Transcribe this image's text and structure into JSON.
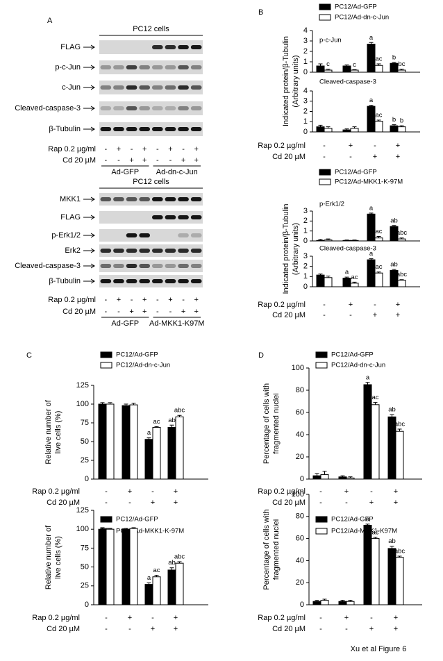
{
  "panel_labels": [
    "A",
    "B",
    "C",
    "D"
  ],
  "caption": "Xu et al Figure 6",
  "blots": [
    {
      "title": "PC12 cells",
      "rows": [
        "FLAG",
        "p-c-Jun",
        "c-Jun",
        "Cleaved-caspase-3",
        "β-Tubulin"
      ],
      "rap_label": "Rap 0.2 µg/ml",
      "cd_label": "Cd 20 µM",
      "rap": [
        "-",
        "+",
        "-",
        "+",
        "-",
        "+",
        "-",
        "+"
      ],
      "cd": [
        "-",
        "-",
        "+",
        "+",
        "-",
        "-",
        "+",
        "+"
      ],
      "groups": [
        "Ad-GFP",
        "Ad-dn-c-Jun"
      ]
    },
    {
      "title": "PC12 cells",
      "rows": [
        "MKK1",
        "FLAG",
        "p-Erk1/2",
        "Erk2",
        "Cleaved-caspase-3",
        "β-Tubulin"
      ],
      "rap_label": "Rap 0.2 µg/ml",
      "cd_label": "Cd 20 µM",
      "rap": [
        "-",
        "+",
        "-",
        "+",
        "-",
        "+",
        "-",
        "+"
      ],
      "cd": [
        "-",
        "-",
        "+",
        "+",
        "-",
        "-",
        "+",
        "+"
      ],
      "groups": [
        "Ad-GFP",
        "Ad-MKK1-K97M"
      ]
    }
  ],
  "chart_data": [
    {
      "type": "bar",
      "ylabel": [
        "Indicated protein/β-Tubulin",
        "(Arbitrary units)"
      ],
      "legend": [
        {
          "name": "PC12/Ad-GFP",
          "color": "#000000"
        },
        {
          "name": "PC12/Ad-dn-c-Jun",
          "color": "#ffffff"
        }
      ],
      "rap_label": "Rap 0.2 µg/ml",
      "cd_label": "Cd 20 µM",
      "rap": [
        "-",
        "+",
        "-",
        "+"
      ],
      "cd": [
        "-",
        "-",
        "+",
        "+"
      ],
      "panels": [
        {
          "title": "p-c-Jun",
          "ylim": [
            0,
            4
          ],
          "yticks": [
            0,
            1,
            2,
            3,
            4
          ],
          "series": [
            {
              "values": [
                0.6,
                0.6,
                2.7,
                0.85
              ],
              "errors": [
                0.2,
                0.1,
                0.15,
                0.1
              ],
              "labels": [
                null,
                null,
                "a",
                "b"
              ]
            },
            {
              "values": [
                0.2,
                0.2,
                0.65,
                0.2
              ],
              "errors": [
                0.1,
                0.05,
                0.15,
                0.1
              ],
              "labels": [
                "c",
                "c",
                "ac",
                "bc"
              ]
            }
          ]
        },
        {
          "title": "Cleaved-caspase-3",
          "ylim": [
            0,
            4
          ],
          "yticks": [
            0,
            1,
            2,
            3,
            4
          ],
          "series": [
            {
              "values": [
                0.5,
                0.2,
                2.5,
                0.6
              ],
              "errors": [
                0.15,
                0.1,
                0.1,
                0.1
              ],
              "labels": [
                null,
                null,
                "a",
                "b"
              ]
            },
            {
              "values": [
                0.35,
                0.35,
                1.05,
                0.5
              ],
              "errors": [
                0.15,
                0.15,
                0.1,
                0.1
              ],
              "labels": [
                null,
                null,
                "ac",
                "b"
              ]
            }
          ]
        }
      ]
    },
    {
      "type": "bar",
      "ylabel": [
        "Indicated protein/β-Tubulin",
        "(Arbitrary units)"
      ],
      "legend": [
        {
          "name": "PC12/Ad-GFP",
          "color": "#000000"
        },
        {
          "name": "PC12/Ad-MKK1-K-97M",
          "color": "#ffffff"
        }
      ],
      "rap_label": "Rap 0.2 µg/ml",
      "cd_label": "Cd 20 µM",
      "rap": [
        "-",
        "+",
        "-",
        "+"
      ],
      "cd": [
        "-",
        "-",
        "+",
        "+"
      ],
      "panels": [
        {
          "title": "p-Erk1/2",
          "ylim": [
            0,
            3
          ],
          "yticks": [
            0,
            1,
            2,
            3
          ],
          "series": [
            {
              "values": [
                0.05,
                0.05,
                2.7,
                1.45
              ],
              "errors": [
                0.1,
                0.05,
                0.1,
                0.1
              ],
              "labels": [
                null,
                null,
                "a",
                "ab"
              ]
            },
            {
              "values": [
                0.1,
                0.05,
                0.3,
                0.2
              ],
              "errors": [
                0.1,
                0.05,
                0.15,
                0.1
              ],
              "labels": [
                null,
                null,
                "ac",
                "abc"
              ]
            }
          ]
        },
        {
          "title": "Cleaved-caspase-3",
          "ylim": [
            0,
            3
          ],
          "yticks": [
            0,
            1,
            2,
            3
          ],
          "series": [
            {
              "values": [
                1.15,
                0.85,
                2.65,
                1.6
              ],
              "errors": [
                0.1,
                0.1,
                0.1,
                0.1
              ],
              "labels": [
                null,
                "a",
                "a",
                "ab"
              ]
            },
            {
              "values": [
                0.9,
                0.35,
                1.35,
                0.65
              ],
              "errors": [
                0.15,
                0.1,
                0.1,
                0.05
              ],
              "labels": [
                null,
                "ac",
                "ac",
                "abc"
              ]
            }
          ]
        }
      ]
    },
    {
      "type": "bar",
      "ylabel": [
        "Relative number of",
        "live cells (%)"
      ],
      "legend": [
        {
          "name": "PC12/Ad-GFP",
          "color": "#000000"
        },
        {
          "name": "PC12/Ad-dn-c-Jun",
          "color": "#ffffff"
        }
      ],
      "rap_label": "Rap 0.2 µg/ml",
      "cd_label": "Cd 20 µM",
      "rap": [
        "-",
        "+",
        "-",
        "+"
      ],
      "cd": [
        "-",
        "-",
        "+",
        "+"
      ],
      "panels": [
        {
          "ylim": [
            0,
            125
          ],
          "yticks": [
            0,
            25,
            50,
            75,
            100,
            125
          ],
          "series": [
            {
              "values": [
                100,
                98,
                53,
                69
              ],
              "errors": [
                2,
                2,
                2,
                3
              ],
              "labels": [
                null,
                null,
                "a",
                "ab"
              ]
            },
            {
              "values": [
                100,
                99,
                69,
                83
              ],
              "errors": [
                2,
                2,
                1,
                2
              ],
              "labels": [
                null,
                null,
                "ac",
                "abc"
              ]
            }
          ]
        }
      ]
    },
    {
      "type": "bar",
      "ylabel": [
        "Relative number of",
        "live cells (%)"
      ],
      "legend": [
        {
          "name": "PC12/Ad-GFP",
          "color": "#000000"
        },
        {
          "name": "PC12/Ad-MKK1-K-97M",
          "color": "#ffffff"
        }
      ],
      "rap_label": "Rap 0.2 µg/ml",
      "cd_label": "Cd 20 µM",
      "rap": [
        "-",
        "+",
        "-",
        "+"
      ],
      "cd": [
        "-",
        "-",
        "+",
        "+"
      ],
      "panels": [
        {
          "ylim": [
            0,
            125
          ],
          "yticks": [
            0,
            25,
            50,
            75,
            100,
            125
          ],
          "series": [
            {
              "values": [
                100,
                100,
                27,
                46
              ],
              "errors": [
                2,
                1,
                2,
                3
              ],
              "labels": [
                null,
                null,
                "a",
                "ab"
              ]
            },
            {
              "values": [
                100,
                101,
                37,
                55
              ],
              "errors": [
                1,
                1,
                2,
                2
              ],
              "labels": [
                null,
                null,
                "ac",
                "abc"
              ]
            }
          ]
        }
      ]
    },
    {
      "type": "bar",
      "ylabel": [
        "Percentage of cells with",
        "fragmented nuclei"
      ],
      "legend": [
        {
          "name": "PC12/Ad-GFP",
          "color": "#000000"
        },
        {
          "name": "PC12/Ad-dn-c-Jun",
          "color": "#ffffff"
        }
      ],
      "rap_label": "Rap 0.2 µg/ml",
      "cd_label": "Cd 20 µM",
      "rap": [
        "-",
        "+",
        "-",
        "+"
      ],
      "cd": [
        "-",
        "-",
        "+",
        "+"
      ],
      "panels": [
        {
          "ylim": [
            0,
            100
          ],
          "yticks": [
            0,
            20,
            40,
            60,
            80,
            100
          ],
          "series": [
            {
              "values": [
                3,
                2,
                85,
                56
              ],
              "errors": [
                2,
                1,
                2,
                2
              ],
              "labels": [
                null,
                null,
                "a",
                "ab"
              ]
            },
            {
              "values": [
                4,
                1,
                67,
                43
              ],
              "errors": [
                3,
                1,
                2,
                2
              ],
              "labels": [
                null,
                null,
                "ac",
                "abc"
              ]
            }
          ]
        }
      ]
    },
    {
      "type": "bar",
      "ylabel": [
        "Percentage of cells with",
        "fragmented nuclei"
      ],
      "legend": [
        {
          "name": "PC12/Ad-GFP",
          "color": "#000000"
        },
        {
          "name": "PC12/Ad-MKK1-K97M",
          "color": "#ffffff"
        }
      ],
      "rap_label": "Rap 0.2 µg/ml",
      "cd_label": "Cd 20 µM",
      "rap": [
        "-",
        "+",
        "-",
        "+"
      ],
      "cd": [
        "-",
        "-",
        "+",
        "+"
      ],
      "panels": [
        {
          "ylim": [
            0,
            100
          ],
          "yticks": [
            0,
            20,
            40,
            60,
            80,
            100
          ],
          "series": [
            {
              "values": [
                3,
                3,
                72,
                51
              ],
              "errors": [
                1,
                1,
                1,
                2
              ],
              "labels": [
                null,
                null,
                "a",
                "ab"
              ]
            },
            {
              "values": [
                4,
                3,
                60,
                43
              ],
              "errors": [
                1,
                1,
                1,
                1
              ],
              "labels": [
                null,
                null,
                "ac",
                "abc"
              ]
            }
          ]
        }
      ]
    }
  ]
}
